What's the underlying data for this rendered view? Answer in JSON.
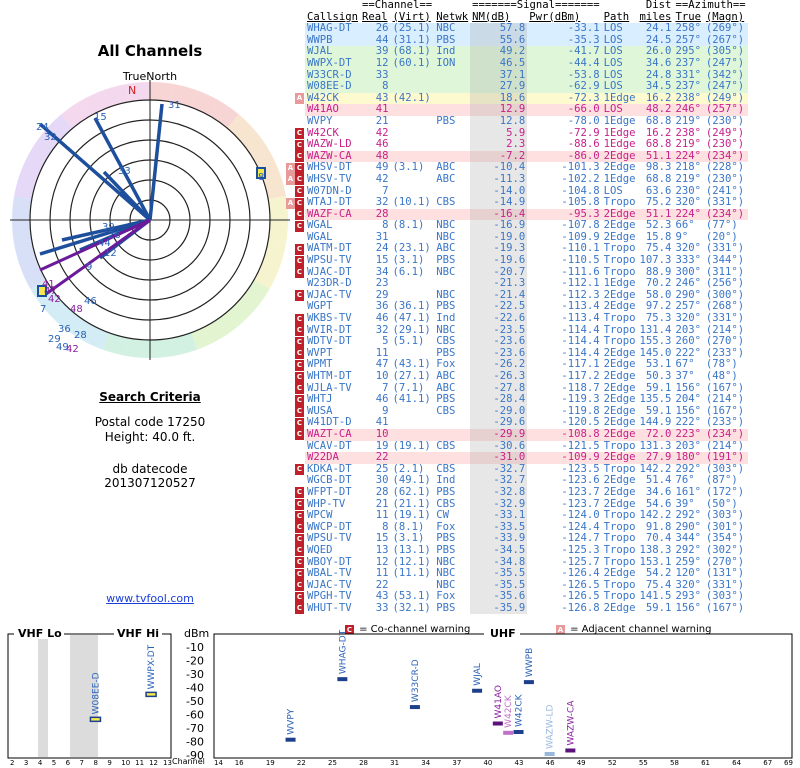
{
  "left": {
    "title": "All Channels",
    "north_label": "TrueNorth",
    "n_marker": "N",
    "search_title": "Search Criteria",
    "postal": "Postal code 17250",
    "height": "Height: 40.0 ft.",
    "db_label": "db datecode",
    "db_value": "201307120527",
    "site": "www.tvfool.com"
  },
  "polar": {
    "markers": [
      "31",
      "15",
      "24",
      "32",
      "8",
      "33",
      "39",
      "26",
      "44",
      "12",
      "9",
      "41",
      "47",
      "42",
      "7",
      "48",
      "46",
      "36",
      "29",
      "28",
      "49",
      "42"
    ]
  },
  "header": {
    "group1": "==Channel==",
    "group2": "=======Signal=======",
    "group3": "Dist",
    "group4": "==Azimuth==",
    "callsign": "Callsign",
    "real": "Real",
    "virt": "(Virt)",
    "netwk": "Netwk",
    "nm": "NM(dB)",
    "pwr": "Pwr(dBm)",
    "path": "Path",
    "miles": "miles",
    "true": "True",
    "magn": "(Magn)"
  },
  "stations": [
    [
      "WHAG-DT",
      "26",
      "(25.1)",
      "NBC",
      "57.8",
      "-33.1",
      "LOS",
      "24.1",
      "258°",
      "(269°)",
      "#3a76c8",
      "#d9eefe",
      ""
    ],
    [
      "WWPB",
      "44",
      "(31.1)",
      "PBS",
      "55.6",
      "-35.3",
      "LOS",
      "24.5",
      "257°",
      "(267°)",
      "#3a76c8",
      "#d9eefe",
      ""
    ],
    [
      "WJAL",
      "39",
      "(68.1)",
      "Ind",
      "49.2",
      "-41.7",
      "LOS",
      "26.0",
      "295°",
      "(305°)",
      "#3a76c8",
      "#dff7d8",
      ""
    ],
    [
      "WWPX-DT",
      "12",
      "(60.1)",
      "ION",
      "46.5",
      "-44.4",
      "LOS",
      "34.6",
      "237°",
      "(247°)",
      "#3a76c8",
      "#dff7d8",
      ""
    ],
    [
      "W33CR-D",
      "33",
      "",
      "",
      "37.1",
      "-53.8",
      "LOS",
      "24.8",
      "331°",
      "(342°)",
      "#3a76c8",
      "#dff7d8",
      ""
    ],
    [
      "W08EE-D",
      "8",
      "",
      "",
      "27.9",
      "-62.9",
      "LOS",
      "34.5",
      "237°",
      "(247°)",
      "#3a76c8",
      "#dff7d8",
      ""
    ],
    [
      "W42CK",
      "43",
      "(42.1)",
      "",
      "18.6",
      "-72.3",
      "1Edge",
      "16.2",
      "238°",
      "(249°)",
      "#3a76c8",
      "#fdfad0",
      "adj"
    ],
    [
      "W41AO",
      "41",
      "",
      "",
      "12.9",
      "-66.0",
      "LOS",
      "48.2",
      "246°",
      "(257°)",
      "#c8208a",
      "#ffe0e0",
      ""
    ],
    [
      "WVPY",
      "21",
      "",
      "PBS",
      "12.8",
      "-78.0",
      "1Edge",
      "68.8",
      "219°",
      "(230°)",
      "#3a76c8",
      "#ffffff",
      ""
    ],
    [
      "W42CK",
      "42",
      "",
      "",
      "5.9",
      "-72.9",
      "1Edge",
      "16.2",
      "238°",
      "(249°)",
      "#c8208a",
      "#ffffff",
      "co"
    ],
    [
      "WAZW-LD",
      "46",
      "",
      "",
      "2.3",
      "-88.6",
      "1Edge",
      "68.8",
      "219°",
      "(230°)",
      "#c8208a",
      "#ffffff",
      "co"
    ],
    [
      "WAZW-CA",
      "48",
      "",
      "",
      "-7.2",
      "-86.0",
      "2Edge",
      "51.1",
      "224°",
      "(234°)",
      "#c8208a",
      "#ffe0e0",
      "co"
    ],
    [
      "WHSV-DT",
      "49",
      "(3.1)",
      "ABC",
      "-10.4",
      "-101.3",
      "2Edge",
      "98.3",
      "218°",
      "(228°)",
      "#3a76c8",
      "#ffffff",
      "both"
    ],
    [
      "WHSV-TV",
      "42",
      "",
      "ABC",
      "-11.3",
      "-102.2",
      "1Edge",
      "68.8",
      "219°",
      "(230°)",
      "#3a76c8",
      "#ffffff",
      "both"
    ],
    [
      "W07DN-D",
      "7",
      "",
      "",
      "-14.0",
      "-104.8",
      "LOS",
      "63.6",
      "230°",
      "(241°)",
      "#3a76c8",
      "#ffffff",
      "co"
    ],
    [
      "WTAJ-DT",
      "32",
      "(10.1)",
      "CBS",
      "-14.9",
      "-105.8",
      "Tropo",
      "75.2",
      "320°",
      "(331°)",
      "#3a76c8",
      "#ffffff",
      "both"
    ],
    [
      "WAZF-CA",
      "28",
      "",
      "",
      "-16.4",
      "-95.3",
      "2Edge",
      "51.1",
      "224°",
      "(234°)",
      "#c8208a",
      "#ffe0e0",
      "co"
    ],
    [
      "WGAL",
      "8",
      "(8.1)",
      "NBC",
      "-16.9",
      "-107.8",
      "2Edge",
      "52.3",
      "66°",
      "(77°)",
      "#3a76c8",
      "#ffffff",
      "co"
    ],
    [
      "WGAL",
      "31",
      "",
      "NBC",
      "-19.0",
      "-109.9",
      "2Edge",
      "15.8",
      "9°",
      "(20°)",
      "#3a76c8",
      "#ffffff",
      ""
    ],
    [
      "WATM-DT",
      "24",
      "(23.1)",
      "ABC",
      "-19.3",
      "-110.1",
      "Tropo",
      "75.4",
      "320°",
      "(331°)",
      "#3a76c8",
      "#ffffff",
      "co"
    ],
    [
      "WPSU-TV",
      "15",
      "(3.1)",
      "PBS",
      "-19.6",
      "-110.5",
      "Tropo",
      "107.3",
      "333°",
      "(344°)",
      "#3a76c8",
      "#ffffff",
      "co"
    ],
    [
      "WJAC-DT",
      "34",
      "(6.1)",
      "NBC",
      "-20.7",
      "-111.6",
      "Tropo",
      "88.9",
      "300°",
      "(311°)",
      "#3a76c8",
      "#ffffff",
      "co"
    ],
    [
      "W23DR-D",
      "23",
      "",
      "",
      "-21.3",
      "-112.1",
      "1Edge",
      "70.2",
      "246°",
      "(256°)",
      "#3a76c8",
      "#ffffff",
      ""
    ],
    [
      "WJAC-TV",
      "29",
      "",
      "NBC",
      "-21.4",
      "-112.3",
      "2Edge",
      "58.0",
      "290°",
      "(300°)",
      "#3a76c8",
      "#ffffff",
      "co"
    ],
    [
      "WGPT",
      "36",
      "(36.1)",
      "PBS",
      "-22.5",
      "-113.4",
      "2Edge",
      "97.2",
      "257°",
      "(268°)",
      "#3a76c8",
      "#ffffff",
      ""
    ],
    [
      "WKBS-TV",
      "46",
      "(47.1)",
      "Ind",
      "-22.6",
      "-113.4",
      "Tropo",
      "75.3",
      "320°",
      "(331°)",
      "#3a76c8",
      "#ffffff",
      "co"
    ],
    [
      "WVIR-DT",
      "32",
      "(29.1)",
      "NBC",
      "-23.5",
      "-114.4",
      "Tropo",
      "131.4",
      "203°",
      "(214°)",
      "#3a76c8",
      "#ffffff",
      "co"
    ],
    [
      "WDTV-DT",
      "5",
      "(5.1)",
      "CBS",
      "-23.6",
      "-114.4",
      "Tropo",
      "155.3",
      "260°",
      "(270°)",
      "#3a76c8",
      "#ffffff",
      "co"
    ],
    [
      "WVPT",
      "11",
      "",
      "PBS",
      "-23.6",
      "-114.4",
      "2Edge",
      "145.0",
      "222°",
      "(233°)",
      "#3a76c8",
      "#ffffff",
      "co"
    ],
    [
      "WPMT",
      "47",
      "(43.1)",
      "Fox",
      "-26.2",
      "-117.1",
      "2Edge",
      "53.1",
      "67°",
      "(78°)",
      "#3a76c8",
      "#ffffff",
      "co"
    ],
    [
      "WHTM-DT",
      "10",
      "(27.1)",
      "ABC",
      "-26.3",
      "-117.2",
      "2Edge",
      "50.3",
      "37°",
      "(48°)",
      "#3a76c8",
      "#ffffff",
      "co"
    ],
    [
      "WJLA-TV",
      "7",
      "(7.1)",
      "ABC",
      "-27.8",
      "-118.7",
      "2Edge",
      "59.1",
      "156°",
      "(167°)",
      "#3a76c8",
      "#ffffff",
      "co"
    ],
    [
      "WHTJ",
      "46",
      "(41.1)",
      "PBS",
      "-28.4",
      "-119.3",
      "2Edge",
      "135.5",
      "204°",
      "(214°)",
      "#3a76c8",
      "#ffffff",
      "co"
    ],
    [
      "WUSA",
      "9",
      "",
      "CBS",
      "-29.0",
      "-119.8",
      "2Edge",
      "59.1",
      "156°",
      "(167°)",
      "#3a76c8",
      "#ffffff",
      "co"
    ],
    [
      "W41DT-D",
      "41",
      "",
      "",
      "-29.6",
      "-120.5",
      "2Edge",
      "144.9",
      "222°",
      "(233°)",
      "#3a76c8",
      "#ffffff",
      "co"
    ],
    [
      "WAZT-CA",
      "10",
      "",
      "",
      "-29.9",
      "-108.8",
      "2Edge",
      "72.0",
      "223°",
      "(234°)",
      "#c8208a",
      "#ffe0e0",
      "co"
    ],
    [
      "WCAV-DT",
      "19",
      "(19.1)",
      "CBS",
      "-30.6",
      "-121.5",
      "Tropo",
      "131.3",
      "203°",
      "(214°)",
      "#3a76c8",
      "#ffffff",
      ""
    ],
    [
      "W22DA",
      "22",
      "",
      "",
      "-31.0",
      "-109.9",
      "2Edge",
      "27.9",
      "180°",
      "(191°)",
      "#c8208a",
      "#ffe0e0",
      ""
    ],
    [
      "KDKA-DT",
      "25",
      "(2.1)",
      "CBS",
      "-32.7",
      "-123.5",
      "Tropo",
      "142.2",
      "292°",
      "(303°)",
      "#3a76c8",
      "#ffffff",
      "co"
    ],
    [
      "WGCB-DT",
      "30",
      "(49.1)",
      "Ind",
      "-32.7",
      "-123.6",
      "2Edge",
      "51.4",
      "76°",
      "(87°)",
      "#3a76c8",
      "#ffffff",
      ""
    ],
    [
      "WFPT-DT",
      "28",
      "(62.1)",
      "PBS",
      "-32.8",
      "-123.7",
      "2Edge",
      "34.6",
      "161°",
      "(172°)",
      "#3a76c8",
      "#ffffff",
      "co"
    ],
    [
      "WHP-TV",
      "21",
      "(21.1)",
      "CBS",
      "-32.9",
      "-123.7",
      "2Edge",
      "54.6",
      "39°",
      "(50°)",
      "#3a76c8",
      "#ffffff",
      "co"
    ],
    [
      "WPCW",
      "11",
      "(19.1)",
      "CW",
      "-33.1",
      "-124.0",
      "Tropo",
      "142.2",
      "292°",
      "(303°)",
      "#3a76c8",
      "#ffffff",
      "co"
    ],
    [
      "WWCP-DT",
      "8",
      "(8.1)",
      "Fox",
      "-33.5",
      "-124.4",
      "Tropo",
      "91.8",
      "290°",
      "(301°)",
      "#3a76c8",
      "#ffffff",
      "co"
    ],
    [
      "WPSU-TV",
      "15",
      "(3.1)",
      "PBS",
      "-33.9",
      "-124.7",
      "Tropo",
      "70.4",
      "344°",
      "(354°)",
      "#3a76c8",
      "#ffffff",
      "co"
    ],
    [
      "WQED",
      "13",
      "(13.1)",
      "PBS",
      "-34.5",
      "-125.3",
      "Tropo",
      "138.3",
      "292°",
      "(302°)",
      "#3a76c8",
      "#ffffff",
      "co"
    ],
    [
      "WBOY-DT",
      "12",
      "(12.1)",
      "NBC",
      "-34.8",
      "-125.7",
      "Tropo",
      "153.1",
      "259°",
      "(270°)",
      "#3a76c8",
      "#ffffff",
      "co"
    ],
    [
      "WBAL-TV",
      "11",
      "(11.1)",
      "NBC",
      "-35.5",
      "-126.4",
      "2Edge",
      "54.2",
      "120°",
      "(131°)",
      "#3a76c8",
      "#ffffff",
      "co"
    ],
    [
      "WJAC-TV",
      "22",
      "",
      "NBC",
      "-35.5",
      "-126.5",
      "Tropo",
      "75.4",
      "320°",
      "(331°)",
      "#3a76c8",
      "#ffffff",
      "co"
    ],
    [
      "WPGH-TV",
      "43",
      "(53.1)",
      "Fox",
      "-35.6",
      "-126.5",
      "Tropo",
      "141.5",
      "293°",
      "(303°)",
      "#3a76c8",
      "#ffffff",
      "co"
    ],
    [
      "WHUT-TV",
      "33",
      "(32.1)",
      "PBS",
      "-35.9",
      "-126.8",
      "2Edge",
      "59.1",
      "156°",
      "(167°)",
      "#3a76c8",
      "#ffffff",
      "co"
    ]
  ],
  "legend": {
    "co": "= Co-channel warning",
    "adj": "= Adjacent channel warning"
  },
  "bottom": {
    "vhf_lo": "VHF Lo",
    "vhf_hi": "VHF Hi",
    "dbm": "dBm",
    "uhf": "UHF",
    "channel": "Channel",
    "dbm_ticks": [
      "-10",
      "-20",
      "-30",
      "-40",
      "-50",
      "-60",
      "-70",
      "-80",
      "-90"
    ],
    "vhf_ticks": [
      "2",
      "3",
      "4",
      "5",
      "6",
      "7",
      "8",
      "9",
      "10",
      "11",
      "12",
      "13"
    ],
    "uhf_ticks": [
      "14",
      "16",
      "19",
      "22",
      "25",
      "28",
      "31",
      "34",
      "37",
      "40",
      "43",
      "46",
      "49",
      "52",
      "55",
      "58",
      "61",
      "64",
      "67",
      "69"
    ],
    "markers": [
      {
        "label": "W08EE-D",
        "dbm": -62.9,
        "ch": 8,
        "color": "#2a62b8",
        "fill": "#f5e94b"
      },
      {
        "label": "WWPX-DT",
        "dbm": -44.4,
        "ch": 12,
        "color": "#2a62b8",
        "fill": "#f5e94b"
      },
      {
        "label": "WVPY",
        "dbm": -78.0,
        "ch": 21,
        "color": "#2a62b8",
        "fill": "#1e3f8c"
      },
      {
        "label": "WHAG-DT",
        "dbm": -33.1,
        "ch": 26,
        "color": "#2a62b8",
        "fill": "#1e3f8c"
      },
      {
        "label": "W33CR-D",
        "dbm": -53.8,
        "ch": 33,
        "color": "#2a62b8",
        "fill": "#1e3f8c"
      },
      {
        "label": "WJAL",
        "dbm": -41.7,
        "ch": 39,
        "color": "#2a62b8",
        "fill": "#1e3f8c"
      },
      {
        "label": "W41AO",
        "dbm": -66.0,
        "ch": 41,
        "color": "#8a1ea0",
        "fill": "#5a137a"
      },
      {
        "label": "W42CK",
        "dbm": -72.9,
        "ch": 42,
        "color": "#c070c8",
        "fill": "#c070c8"
      },
      {
        "label": "W42CK",
        "dbm": -72.3,
        "ch": 43,
        "color": "#2a62b8",
        "fill": "#1e3f8c"
      },
      {
        "label": "WWPB",
        "dbm": -35.3,
        "ch": 44,
        "color": "#2a62b8",
        "fill": "#1e3f8c"
      },
      {
        "label": "WAZW-LD",
        "dbm": -88.6,
        "ch": 46,
        "color": "#9ab8dc",
        "fill": "#9ab8dc"
      },
      {
        "label": "WAZW-CA",
        "dbm": -86.0,
        "ch": 48,
        "color": "#8a1ea0",
        "fill": "#5a137a"
      }
    ]
  }
}
